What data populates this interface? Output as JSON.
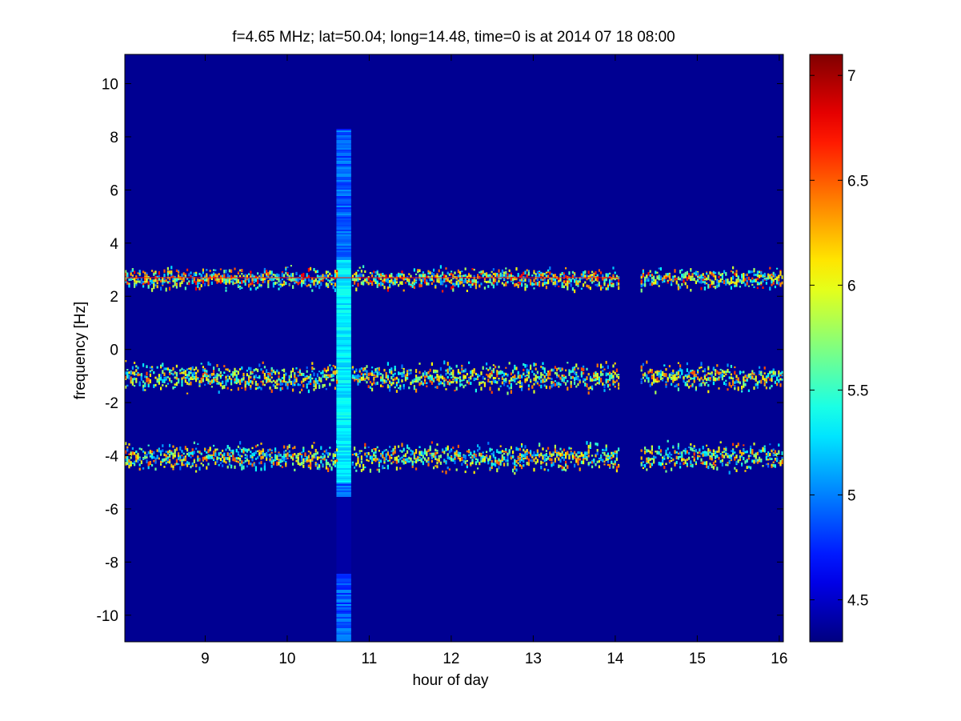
{
  "chart_data": {
    "type": "heatmap",
    "title": "f=4.65 MHz;  lat=50.04; long=14.48, time=0 is at 2014 07 18 08:00",
    "xlabel": "hour of day",
    "ylabel": "frequency [Hz]",
    "xlim": [
      8.02,
      16.05
    ],
    "ylim": [
      -11,
      11.1
    ],
    "xticks": [
      9,
      10,
      11,
      12,
      13,
      14,
      15,
      16
    ],
    "yticks": [
      -10,
      -8,
      -6,
      -4,
      -2,
      0,
      2,
      4,
      6,
      8,
      10
    ],
    "colormap": "jet",
    "colorbar": {
      "range": [
        4.3,
        7.1
      ],
      "ticks": [
        4.5,
        5,
        5.5,
        6,
        6.5,
        7
      ]
    },
    "background_value": 4.35,
    "data_gap": [
      14.05,
      14.3
    ],
    "traces": [
      {
        "center_hz": 2.7,
        "spread_hz": 0.35,
        "peak_value": 6.8,
        "x_range": [
          8.02,
          16.05
        ]
      },
      {
        "center_hz": -1.0,
        "spread_hz": 0.45,
        "peak_value": 6.6,
        "x_range": [
          8.02,
          16.05
        ]
      },
      {
        "center_hz": -4.0,
        "spread_hz": 0.45,
        "peak_value": 6.6,
        "x_range": [
          8.02,
          16.05
        ]
      }
    ],
    "broadband_event": {
      "x_range": [
        10.6,
        10.78
      ],
      "y_range": [
        -11,
        8.3
      ],
      "value": 4.9,
      "bright_value": 5.3
    },
    "grid": false
  }
}
